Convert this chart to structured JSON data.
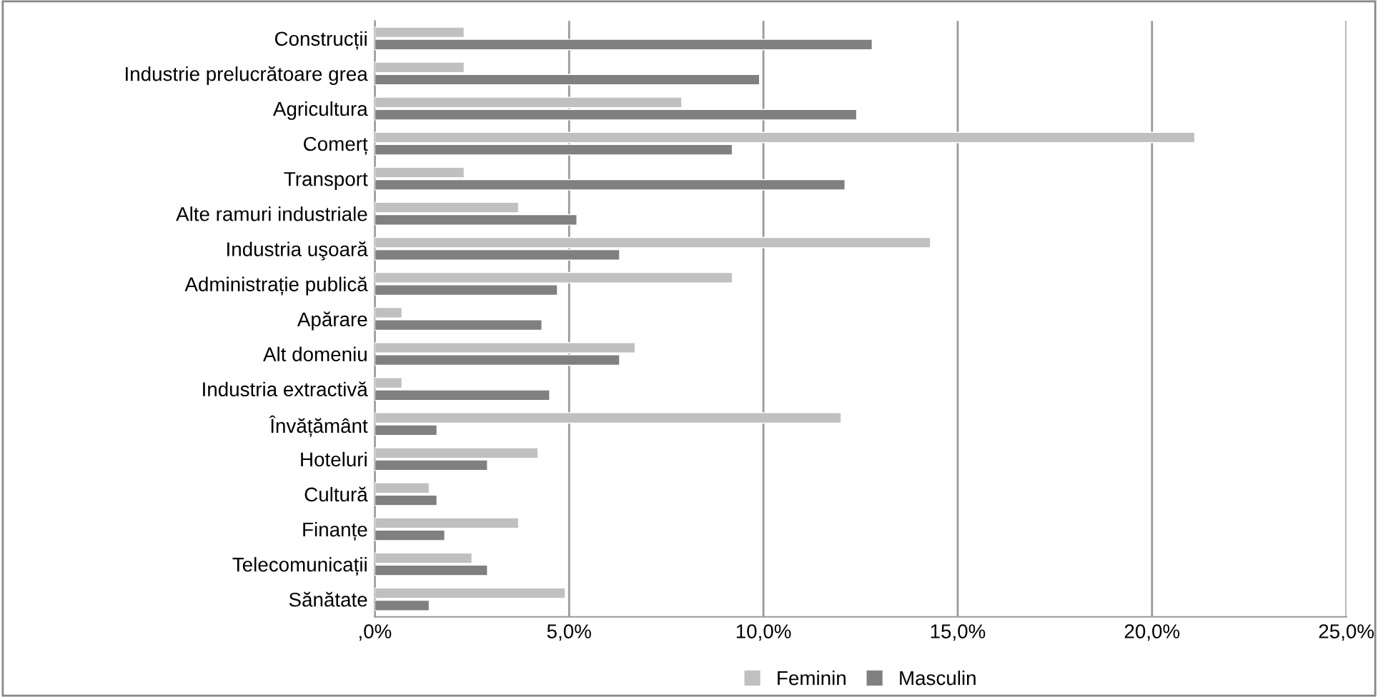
{
  "chart_data": {
    "type": "bar",
    "orientation": "horizontal",
    "categories": [
      "Construcții",
      "Industrie prelucrătoare grea",
      "Agricultura",
      "Comerț",
      "Transport",
      "Alte ramuri industriale",
      "Industria uşoară",
      "Administrație publică",
      "Apărare",
      "Alt domeniu",
      "Industria extractivă",
      "Învățământ",
      "Hoteluri",
      "Cultură",
      "Finanțe",
      "Telecomunicații",
      "Sănătate"
    ],
    "series": [
      {
        "name": "Feminin",
        "color": "#c0c0c0",
        "values": [
          2.3,
          2.3,
          7.9,
          21.1,
          2.3,
          3.7,
          14.3,
          9.2,
          0.7,
          6.7,
          0.7,
          12.0,
          4.2,
          1.4,
          3.7,
          2.5,
          4.9
        ]
      },
      {
        "name": "Masculin",
        "color": "#808080",
        "values": [
          12.8,
          9.9,
          12.4,
          9.2,
          12.1,
          5.2,
          6.3,
          4.7,
          4.3,
          6.3,
          4.5,
          1.6,
          2.9,
          1.6,
          1.8,
          2.9,
          1.4
        ]
      }
    ],
    "xlim": [
      0,
      25
    ],
    "xticks": [
      {
        "value": 0,
        "label": ",0%"
      },
      {
        "value": 5,
        "label": "5,0%"
      },
      {
        "value": 10,
        "label": "10,0%"
      },
      {
        "value": 15,
        "label": "15,0%"
      },
      {
        "value": 20,
        "label": "20,0%"
      },
      {
        "value": 25,
        "label": "25,0%"
      }
    ],
    "grid": "x",
    "legend": "bottom"
  }
}
